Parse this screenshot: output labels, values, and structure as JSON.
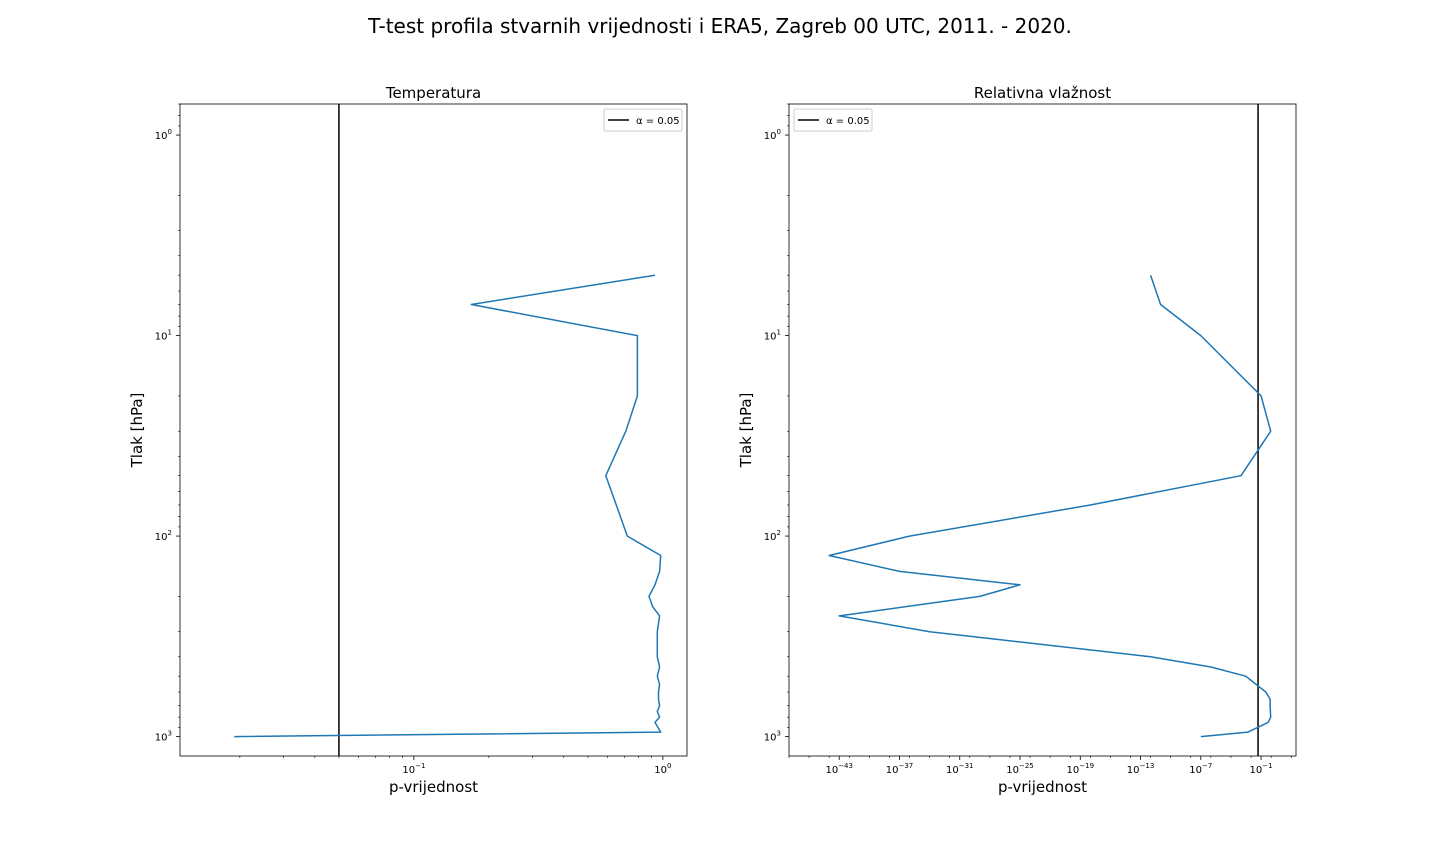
{
  "figure": {
    "suptitle": "T-test profila stvarnih vrijednosti i ERA5, Zagreb 00 UTC, 2011. - 2020."
  },
  "colors": {
    "series": "#1f77b4",
    "alpha_line": "#000000",
    "axes": "#000000"
  },
  "chart_data": [
    {
      "type": "line",
      "title": "Temperatura",
      "xlabel": "p-vrijednost",
      "ylabel": "Tlak [hPa]",
      "xscale": "log",
      "yscale": "log",
      "yinverted": true,
      "xlim": [
        0.0115,
        1.25
      ],
      "ylim": [
        1250,
        0.7
      ],
      "xticks": [
        {
          "value": 0.1,
          "base": "10",
          "exp": "−1"
        },
        {
          "value": 1,
          "base": "10",
          "exp": "0"
        }
      ],
      "yticks": [
        {
          "value": 1,
          "base": "10",
          "exp": "0"
        },
        {
          "value": 10,
          "base": "10",
          "exp": "1"
        },
        {
          "value": 100,
          "base": "10",
          "exp": "2"
        },
        {
          "value": 1000,
          "base": "10",
          "exp": "3"
        }
      ],
      "grid": false,
      "legend": {
        "placement": "upper right",
        "label": "α = 0.05"
      },
      "threshold": {
        "name": "α = 0.05",
        "x": 0.05
      },
      "series": [
        {
          "x": [
            0.93,
            0.17,
            0.79,
            0.79,
            0.71,
            0.59,
            0.65,
            0.72,
            0.98,
            0.97,
            0.93,
            0.88,
            0.91,
            0.97,
            0.95,
            0.95,
            0.95,
            0.97,
            0.95,
            0.97,
            0.96,
            0.96,
            0.97,
            0.95,
            0.97,
            0.93,
            0.98,
            0.019
          ],
          "y": [
            5,
            7,
            10,
            20,
            30,
            50,
            70,
            100,
            125,
            150,
            175,
            200,
            225,
            250,
            300,
            350,
            400,
            450,
            500,
            550,
            600,
            650,
            700,
            750,
            800,
            850,
            950,
            1000
          ]
        }
      ]
    },
    {
      "type": "line",
      "title": "Relativna vlažnost",
      "xlabel": "p-vrijednost",
      "ylabel": "Tlak [hPa]",
      "xscale": "log",
      "yscale": "log",
      "yinverted": true,
      "xlim": [
        1e-48,
        300
      ],
      "ylim": [
        1250,
        0.7
      ],
      "xticks": [
        {
          "value": 1e-43,
          "base": "10",
          "exp": "−43"
        },
        {
          "value": 1e-37,
          "base": "10",
          "exp": "−37"
        },
        {
          "value": 1e-31,
          "base": "10",
          "exp": "−31"
        },
        {
          "value": 1e-25,
          "base": "10",
          "exp": "−25"
        },
        {
          "value": 1e-19,
          "base": "10",
          "exp": "−19"
        },
        {
          "value": 1e-13,
          "base": "10",
          "exp": "−13"
        },
        {
          "value": 1e-07,
          "base": "10",
          "exp": "−7"
        },
        {
          "value": 0.1,
          "base": "10",
          "exp": "−1"
        }
      ],
      "yticks": [
        {
          "value": 1,
          "base": "10",
          "exp": "0"
        },
        {
          "value": 10,
          "base": "10",
          "exp": "1"
        },
        {
          "value": 100,
          "base": "10",
          "exp": "2"
        },
        {
          "value": 1000,
          "base": "10",
          "exp": "3"
        }
      ],
      "grid": false,
      "legend": {
        "placement": "upper left",
        "label": "α = 0.05"
      },
      "threshold": {
        "name": "α = 0.05",
        "x": 0.05
      },
      "series": [
        {
          "x": [
            1e-12,
            1e-11,
            1e-07,
            0.1,
            0.9,
            0.001,
            1e-18,
            1e-36,
            1e-44,
            1e-37,
            1e-25,
            1e-29,
            1e-43,
            1e-34,
            1e-12,
            1e-06,
            0.003,
            0.3,
            0.8,
            0.8,
            0.9,
            0.5,
            0.005,
            1e-07
          ],
          "y": [
            5,
            7,
            10,
            20,
            30,
            50,
            70,
            100,
            125,
            150,
            175,
            200,
            250,
            300,
            400,
            450,
            500,
            600,
            650,
            700,
            800,
            850,
            950,
            1000
          ]
        }
      ]
    }
  ]
}
